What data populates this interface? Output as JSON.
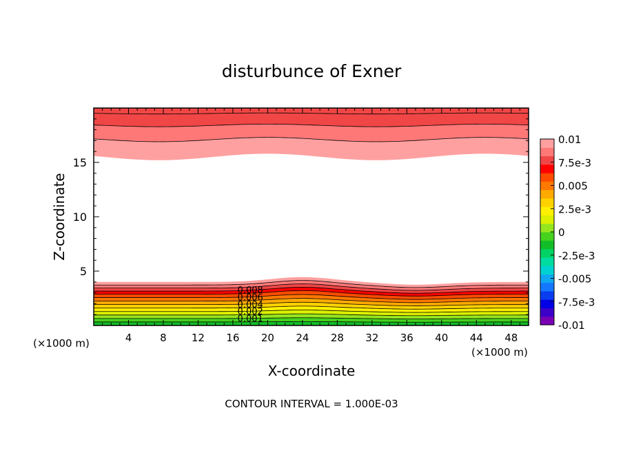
{
  "chart_data": {
    "type": "contour",
    "title": "disturbunce of Exner",
    "xlabel": "X-coordinate",
    "ylabel": "Z-coordinate",
    "x_unit": "(×1000 m)",
    "xlim": [
      0,
      50
    ],
    "ylim": [
      0,
      20
    ],
    "x_ticks": [
      4,
      8,
      12,
      16,
      20,
      24,
      28,
      32,
      36,
      40,
      44,
      48
    ],
    "y_ticks": [
      5,
      10,
      15
    ],
    "footer": "CONTOUR INTERVAL = 1.000E-03",
    "contour_interval": 0.001,
    "inline_labels": [
      "0.008",
      "0.006",
      "0.004",
      "0.002",
      "0.001"
    ],
    "colorbar": {
      "labels": [
        {
          "value": 0.01,
          "text": "0.01"
        },
        {
          "value": 0.0075,
          "text": "7.5e-3"
        },
        {
          "value": 0.005,
          "text": "0.005"
        },
        {
          "value": 0.0025,
          "text": "2.5e-3"
        },
        {
          "value": 0,
          "text": "0"
        },
        {
          "value": -0.0025,
          "text": "-2.5e-3"
        },
        {
          "value": -0.005,
          "text": "-0.005"
        },
        {
          "value": -0.0075,
          "text": "-7.5e-3"
        },
        {
          "value": -0.01,
          "text": "-0.01"
        }
      ],
      "colors": [
        "#7a00b4",
        "#3c00c8",
        "#0000e6",
        "#0a3cf0",
        "#1478ff",
        "#10a8f0",
        "#00d2d2",
        "#00dca0",
        "#00d264",
        "#12be28",
        "#46d21e",
        "#96e61e",
        "#dcf000",
        "#fff000",
        "#ffd200",
        "#ffaa00",
        "#ff7800",
        "#ff4b00",
        "#ff0000",
        "#f04646",
        "#ff7878",
        "#ffa0a0"
      ]
    },
    "bottom_layer": {
      "top_base": 4.0,
      "bumps": [
        {
          "x": 24,
          "amp": 0.45,
          "w": 5
        },
        {
          "x": 37,
          "amp": -0.25,
          "w": 5
        }
      ],
      "levels": [
        {
          "frac": 1.0,
          "color": "#ffa0a0"
        },
        {
          "frac": 0.93,
          "color": "#ff7878"
        },
        {
          "frac": 0.86,
          "color": "#f04646"
        },
        {
          "frac": 0.79,
          "color": "#ff0000"
        },
        {
          "frac": 0.72,
          "color": "#ff4b00"
        },
        {
          "frac": 0.64,
          "color": "#ff7800"
        },
        {
          "frac": 0.56,
          "color": "#ffaa00"
        },
        {
          "frac": 0.48,
          "color": "#ffd200"
        },
        {
          "frac": 0.4,
          "color": "#fff000"
        },
        {
          "frac": 0.32,
          "color": "#dcf000"
        },
        {
          "frac": 0.24,
          "color": "#96e61e"
        },
        {
          "frac": 0.16,
          "color": "#46d21e"
        },
        {
          "frac": 0.08,
          "color": "#12be28"
        }
      ]
    },
    "top_layer": {
      "edges": [
        {
          "z": 15.5,
          "wave": 0.3,
          "color": "#ffa0a0"
        },
        {
          "z": 17.1,
          "wave": 0.2,
          "color": "#ff7878"
        },
        {
          "z": 18.4,
          "wave": 0.12,
          "color": "#f04646"
        },
        {
          "z": 19.5,
          "wave": 0.05,
          "color": "#f04646"
        }
      ]
    }
  }
}
